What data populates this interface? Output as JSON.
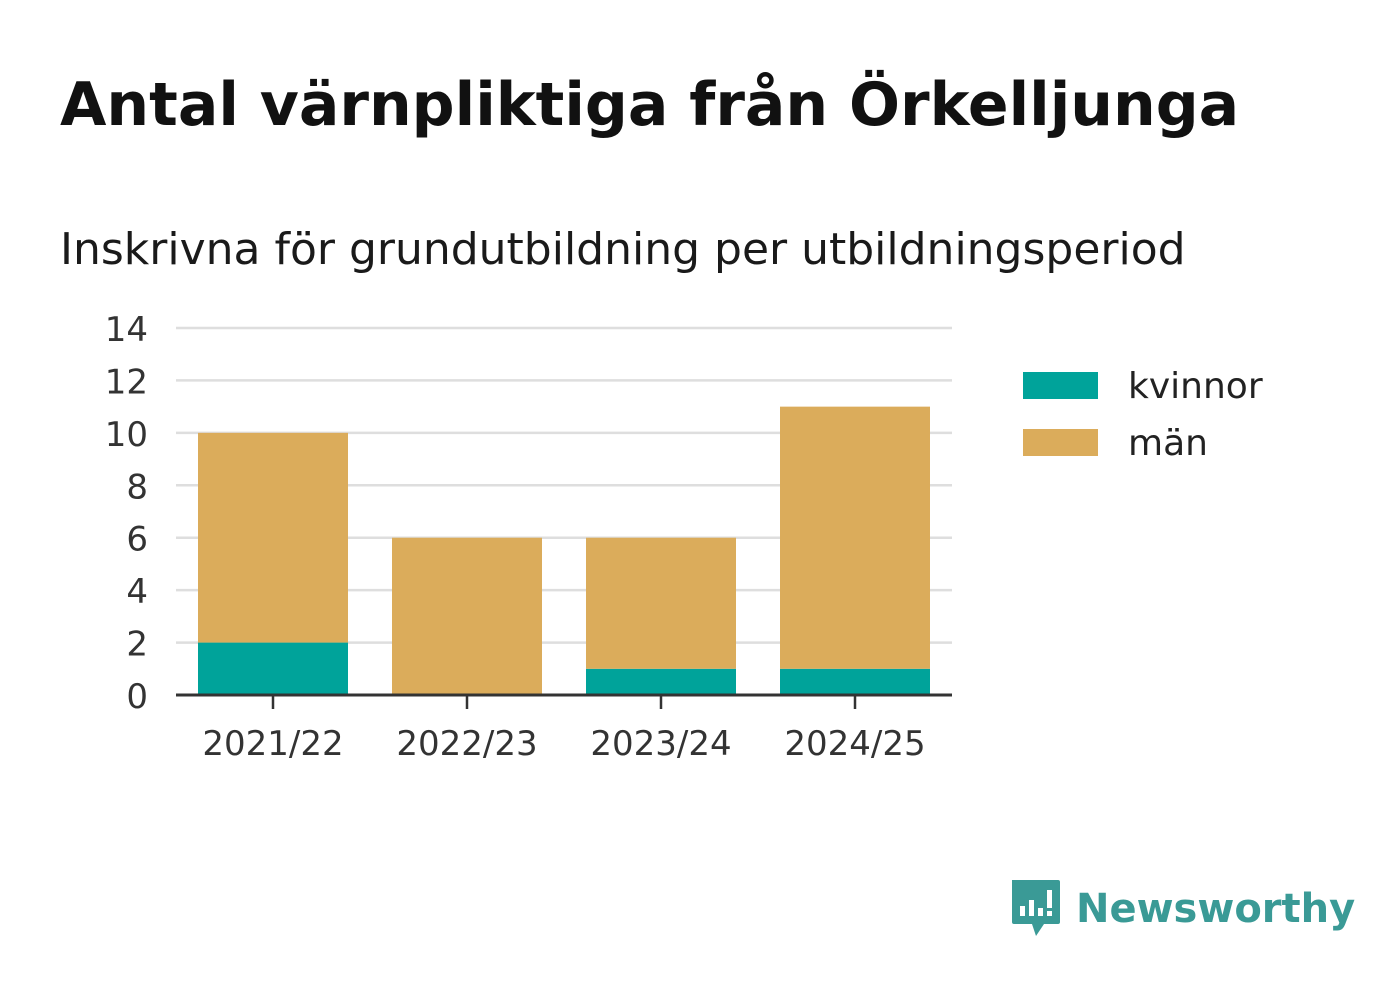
{
  "title": "Antal värnpliktiga från Örkelljunga",
  "subtitle": "Inskrivna för grundutbildning per utbildningsperiod",
  "brand": {
    "name": "Newsworthy",
    "icon": "newsworthy-logo-icon",
    "color": "#3a9a96"
  },
  "chart_data": {
    "type": "bar",
    "stacked": true,
    "categories": [
      "2021/22",
      "2022/23",
      "2023/24",
      "2024/25"
    ],
    "series": [
      {
        "name": "kvinnor",
        "values": [
          2,
          0,
          1,
          1
        ],
        "color": "#00a39a"
      },
      {
        "name": "män",
        "values": [
          8,
          6,
          5,
          10
        ],
        "color": "#dbac5b"
      }
    ],
    "ylim": [
      0,
      14
    ],
    "yticks": [
      0,
      2,
      4,
      6,
      8,
      10,
      12,
      14
    ],
    "grid": true,
    "legend": "right"
  }
}
